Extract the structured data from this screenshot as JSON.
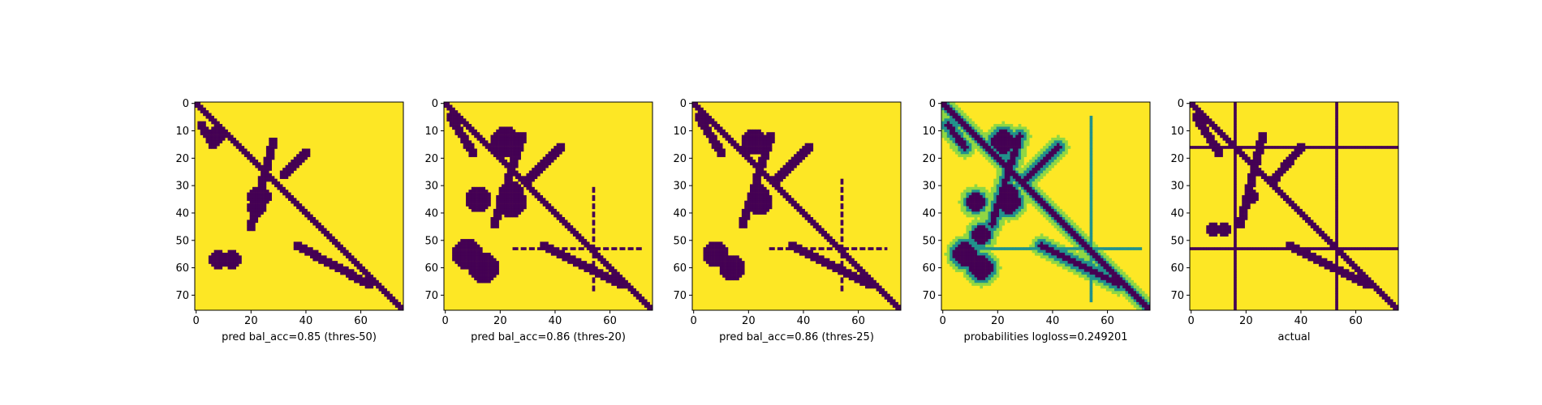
{
  "figure": {
    "colors": {
      "fill": "#fde725",
      "line": "#440154",
      "mid": "#21918c",
      "light": "#8fd744"
    },
    "axis": {
      "size": 76,
      "xticks": [
        "0",
        "20",
        "40",
        "60"
      ],
      "yticks": [
        "0",
        "10",
        "20",
        "30",
        "40",
        "50",
        "60",
        "70"
      ]
    }
  },
  "chart_data": [
    {
      "type": "heatmap",
      "xlabel": "pred bal_acc=0.85 (thres-50)",
      "xlim": [
        0,
        75
      ],
      "ylim": [
        0,
        75
      ],
      "y_inverted": true,
      "colormap": "viridis",
      "binary": true,
      "diagonal": true,
      "segments": [
        [
          2,
          8,
          6,
          15
        ],
        [
          20,
          45,
          28,
          14
        ],
        [
          37,
          52,
          63,
          66
        ],
        [
          32,
          26,
          40,
          18
        ]
      ],
      "blobs": [
        [
          8,
          57,
          3
        ],
        [
          13,
          57,
          3
        ],
        [
          22,
          34,
          3
        ],
        [
          24,
          34,
          3
        ],
        [
          22,
          38,
          3
        ],
        [
          7,
          12,
          3
        ]
      ],
      "lines": []
    },
    {
      "type": "heatmap",
      "xlabel": "pred bal_acc=0.86 (thres-20)",
      "xlim": [
        0,
        75
      ],
      "ylim": [
        0,
        75
      ],
      "y_inverted": true,
      "colormap": "viridis",
      "binary": true,
      "diagonal": true,
      "segments": [
        [
          2,
          5,
          10,
          18
        ],
        [
          18,
          44,
          28,
          12
        ],
        [
          36,
          52,
          64,
          66
        ],
        [
          30,
          28,
          42,
          16
        ]
      ],
      "blobs": [
        [
          8,
          55,
          5
        ],
        [
          14,
          60,
          5
        ],
        [
          24,
          33,
          4
        ],
        [
          24,
          36,
          5
        ],
        [
          22,
          14,
          5
        ],
        [
          12,
          35,
          4
        ]
      ],
      "lines": [
        {
          "orientation": "h",
          "pos": 53,
          "from": 24,
          "to": 72,
          "dash": true
        },
        {
          "orientation": "v",
          "pos": 54,
          "from": 30,
          "to": 68,
          "dash": true
        }
      ]
    },
    {
      "type": "heatmap",
      "xlabel": "pred bal_acc=0.86 (thres-25)",
      "xlim": [
        0,
        75
      ],
      "ylim": [
        0,
        75
      ],
      "y_inverted": true,
      "colormap": "viridis",
      "binary": true,
      "diagonal": true,
      "segments": [
        [
          2,
          5,
          10,
          18
        ],
        [
          18,
          44,
          28,
          12
        ],
        [
          36,
          52,
          64,
          66
        ],
        [
          30,
          28,
          42,
          16
        ]
      ],
      "blobs": [
        [
          8,
          55,
          4
        ],
        [
          14,
          60,
          4
        ],
        [
          24,
          33,
          3
        ],
        [
          24,
          36,
          4
        ],
        [
          22,
          14,
          4
        ]
      ],
      "lines": [
        {
          "orientation": "h",
          "pos": 53,
          "from": 28,
          "to": 70,
          "dash": true
        },
        {
          "orientation": "v",
          "pos": 54,
          "from": 28,
          "to": 68,
          "dash": true
        }
      ]
    },
    {
      "type": "heatmap",
      "xlabel": "probabilities logloss=0.249201",
      "xlim": [
        0,
        75
      ],
      "ylim": [
        0,
        75
      ],
      "y_inverted": true,
      "colormap": "viridis",
      "binary": false,
      "diagonal": true,
      "segments": [
        [
          2,
          8,
          8,
          16
        ],
        [
          18,
          44,
          28,
          12
        ],
        [
          36,
          52,
          64,
          66
        ],
        [
          30,
          28,
          42,
          16
        ]
      ],
      "blobs": [
        [
          8,
          55,
          4
        ],
        [
          14,
          60,
          4
        ],
        [
          24,
          33,
          3
        ],
        [
          24,
          36,
          4
        ],
        [
          22,
          14,
          4
        ],
        [
          14,
          48,
          3
        ],
        [
          12,
          36,
          3
        ]
      ],
      "lines": [
        {
          "orientation": "h",
          "pos": 53,
          "from": 5,
          "to": 72,
          "dash": false
        },
        {
          "orientation": "v",
          "pos": 54,
          "from": 5,
          "to": 72,
          "dash": false
        }
      ]
    },
    {
      "type": "heatmap",
      "xlabel": "actual",
      "xlim": [
        0,
        75
      ],
      "ylim": [
        0,
        75
      ],
      "y_inverted": true,
      "colormap": "viridis",
      "binary": true,
      "diagonal": true,
      "segments": [
        [
          2,
          5,
          10,
          18
        ],
        [
          18,
          44,
          26,
          12
        ],
        [
          36,
          52,
          64,
          66
        ],
        [
          30,
          28,
          40,
          16
        ]
      ],
      "blobs": [
        [
          8,
          46,
          2
        ],
        [
          12,
          46,
          2
        ],
        [
          22,
          34,
          2
        ]
      ],
      "lines": [
        {
          "orientation": "h",
          "pos": 16,
          "from": 0,
          "to": 75,
          "dash": false
        },
        {
          "orientation": "h",
          "pos": 53,
          "from": 0,
          "to": 75,
          "dash": false
        },
        {
          "orientation": "v",
          "pos": 16,
          "from": 0,
          "to": 75,
          "dash": false
        },
        {
          "orientation": "v",
          "pos": 53,
          "from": 0,
          "to": 75,
          "dash": false
        }
      ]
    }
  ]
}
